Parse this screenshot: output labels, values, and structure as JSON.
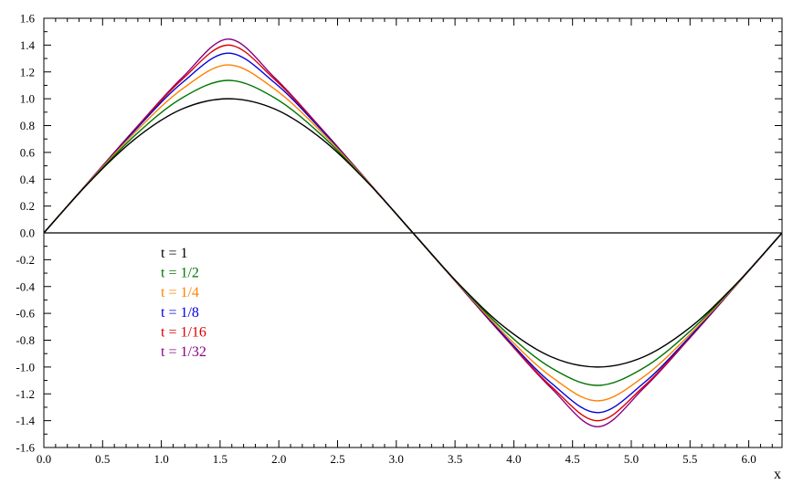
{
  "chart_data": {
    "type": "line",
    "xlabel": "x",
    "ylabel": "",
    "xlim": [
      0,
      6.2832
    ],
    "ylim": [
      -1.6,
      1.6
    ],
    "grid": false,
    "legend_placement": "center-left",
    "x_ticks": [
      "0.0",
      "0.5",
      "1.0",
      "1.5",
      "2.0",
      "2.5",
      "3.0",
      "3.5",
      "4.0",
      "4.5",
      "5.0",
      "5.5",
      "6.0"
    ],
    "y_ticks": [
      "1.6",
      "1.4",
      "1.2",
      "1.0",
      "0.8",
      "0.6",
      "0.4",
      "0.2",
      "0.0",
      "-0.2",
      "-0.4",
      "-0.6",
      "-0.8",
      "-1.0",
      "-1.2",
      "-1.4",
      "-1.6"
    ],
    "x": [
      0,
      0.3927,
      0.7854,
      1.1781,
      1.5708,
      1.9635,
      2.3562,
      2.7489,
      3.1416,
      3.5343,
      3.927,
      4.3197,
      4.7124,
      5.1051,
      5.4978,
      5.8905,
      6.2832
    ],
    "series": [
      {
        "name": "t = 1",
        "color": "#000000",
        "values": [
          0,
          0.383,
          0.707,
          0.924,
          1.0,
          0.924,
          0.707,
          0.383,
          0,
          -0.383,
          -0.707,
          -0.924,
          -1.0,
          -0.924,
          -0.707,
          -0.383,
          0
        ]
      },
      {
        "name": "t = 1/2",
        "color": "#007700",
        "values": [
          0,
          0.385,
          0.735,
          1.007,
          1.137,
          1.007,
          0.735,
          0.385,
          0,
          -0.385,
          -0.735,
          -1.007,
          -1.137,
          -1.007,
          -0.735,
          -0.385,
          0
        ]
      },
      {
        "name": "t = 1/4",
        "color": "#ff8000",
        "values": [
          0,
          0.389,
          0.758,
          1.073,
          1.252,
          1.073,
          0.758,
          0.389,
          0,
          -0.389,
          -0.758,
          -1.073,
          -1.252,
          -1.073,
          -0.758,
          -0.389,
          0
        ]
      },
      {
        "name": "t = 1/8",
        "color": "#0000dd",
        "values": [
          0,
          0.391,
          0.774,
          1.12,
          1.34,
          1.12,
          0.774,
          0.391,
          0,
          -0.391,
          -0.774,
          -1.12,
          -1.34,
          -1.12,
          -0.774,
          -0.391,
          0
        ]
      },
      {
        "name": "t = 1/16",
        "color": "#dd0000",
        "values": [
          0,
          0.392,
          0.781,
          1.145,
          1.4,
          1.145,
          0.781,
          0.392,
          0,
          -0.392,
          -0.781,
          -1.145,
          -1.4,
          -1.145,
          -0.781,
          -0.392,
          0
        ]
      },
      {
        "name": "t = 1/32",
        "color": "#880088",
        "values": [
          0,
          0.393,
          0.784,
          1.158,
          1.445,
          1.158,
          0.784,
          0.393,
          0,
          -0.393,
          -0.784,
          -1.158,
          -1.445,
          -1.158,
          -0.784,
          -0.393,
          0
        ]
      }
    ]
  }
}
